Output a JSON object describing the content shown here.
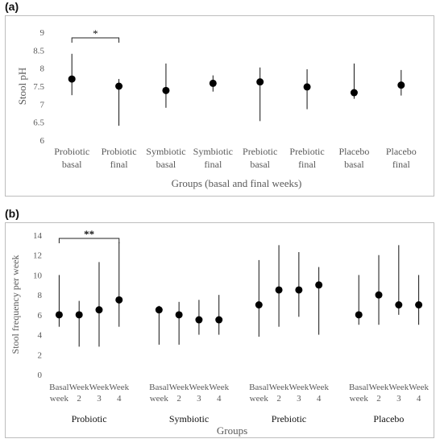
{
  "chart_data": [
    {
      "panel_label": "(a)",
      "type": "scatter",
      "ylabel": "Stool pH",
      "xlabel": "Groups (basal and final weeks)",
      "ylim": [
        6,
        9
      ],
      "yticks": [
        "6",
        "6.5",
        "7",
        "7.5",
        "8",
        "8.5",
        "9"
      ],
      "grid": false,
      "categories": [
        [
          "Probiotic",
          "basal"
        ],
        [
          "Probiotic",
          "final"
        ],
        [
          "Symbiotic",
          "basal"
        ],
        [
          "Symbiotic",
          "final"
        ],
        [
          "Prebiotic",
          "basal"
        ],
        [
          "Prebiotic",
          "final"
        ],
        [
          "Placebo",
          "basal"
        ],
        [
          "Placebo",
          "final"
        ]
      ],
      "points": [
        {
          "y": 7.7,
          "low": 7.25,
          "high": 8.4
        },
        {
          "y": 7.5,
          "low": 6.4,
          "high": 7.7
        },
        {
          "y": 7.38,
          "low": 6.9,
          "high": 8.13
        },
        {
          "y": 7.58,
          "low": 7.35,
          "high": 7.8
        },
        {
          "y": 7.62,
          "low": 6.53,
          "high": 8.02
        },
        {
          "y": 7.48,
          "low": 6.86,
          "high": 7.97
        },
        {
          "y": 7.32,
          "low": 7.15,
          "high": 8.13
        },
        {
          "y": 7.53,
          "low": 7.24,
          "high": 7.95
        }
      ],
      "significance": [
        {
          "from": 0,
          "to": 1,
          "label": "*"
        }
      ]
    },
    {
      "panel_label": "(b)",
      "type": "scatter",
      "ylabel": "Stool frequency per week",
      "xlabel": "Groups",
      "ylim": [
        0,
        14
      ],
      "yticks": [
        "0",
        "2",
        "4",
        "6",
        "8",
        "10",
        "12",
        "14"
      ],
      "grid": false,
      "groups": [
        {
          "name": "Probiotic",
          "categories": [
            [
              "Basal",
              "week"
            ],
            [
              "Week",
              "2"
            ],
            [
              "Week",
              "3"
            ],
            [
              "Week",
              "4"
            ]
          ],
          "points": [
            {
              "y": 6,
              "low": 4.8,
              "high": 10
            },
            {
              "y": 6,
              "low": 2.8,
              "high": 7.4
            },
            {
              "y": 6.5,
              "low": 2.8,
              "high": 11.3
            },
            {
              "y": 7.5,
              "low": 4.8,
              "high": 13.3
            }
          ]
        },
        {
          "name": "Symbiotic",
          "categories": [
            [
              "Basal",
              "week"
            ],
            [
              "Week",
              "2"
            ],
            [
              "Week",
              "3"
            ],
            [
              "Week",
              "4"
            ]
          ],
          "points": [
            {
              "y": 6.5,
              "low": 3,
              "high": 6.9
            },
            {
              "y": 6,
              "low": 3,
              "high": 7.3
            },
            {
              "y": 5.5,
              "low": 4,
              "high": 7.5
            },
            {
              "y": 5.5,
              "low": 4,
              "high": 8
            }
          ]
        },
        {
          "name": "Prebiotic",
          "categories": [
            [
              "Basal",
              "week"
            ],
            [
              "Week",
              "2"
            ],
            [
              "Week",
              "3"
            ],
            [
              "Week",
              "4"
            ]
          ],
          "points": [
            {
              "y": 7,
              "low": 3.8,
              "high": 11.5
            },
            {
              "y": 8.5,
              "low": 4.8,
              "high": 13
            },
            {
              "y": 8.5,
              "low": 5.8,
              "high": 12.3
            },
            {
              "y": 9,
              "low": 4,
              "high": 10.8
            }
          ]
        },
        {
          "name": "Placebo",
          "categories": [
            [
              "Basal",
              "week"
            ],
            [
              "Week",
              "2"
            ],
            [
              "Week",
              "3"
            ],
            [
              "Week",
              "4"
            ]
          ],
          "points": [
            {
              "y": 6,
              "low": 5,
              "high": 10
            },
            {
              "y": 8,
              "low": 5,
              "high": 12
            },
            {
              "y": 7,
              "low": 6,
              "high": 13
            },
            {
              "y": 7,
              "low": 5,
              "high": 10
            }
          ]
        }
      ],
      "significance": [
        {
          "group": 0,
          "from": 0,
          "to": 3,
          "label": "**"
        }
      ]
    }
  ]
}
